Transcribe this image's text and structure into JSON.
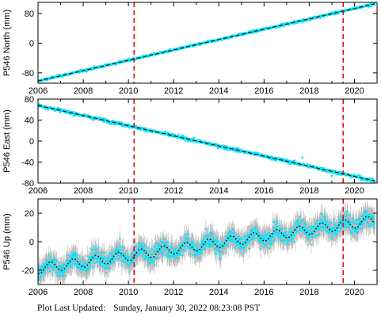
{
  "footer": {
    "label": "Plot Last Updated:",
    "timestamp": "Sunday, January 30, 2022 08:23:08 PST"
  },
  "colors": {
    "data": "#00e5ff",
    "error_bar": "#b8b8b8",
    "model": "#000000",
    "event": "#e01010",
    "frame": "#000000"
  },
  "chart_data": [
    {
      "type": "scatter",
      "ylabel": "P546 North (mm)",
      "xlim": [
        2006.0,
        2021.0
      ],
      "ylim": [
        -108,
        110
      ],
      "xticks": [
        2006,
        2008,
        2010,
        2012,
        2014,
        2016,
        2018,
        2020
      ],
      "yticks": [
        -80,
        0,
        80
      ],
      "grid": false,
      "series": [
        {
          "style": "cyan points with error bars",
          "trend_mm_per_yr": 14.0,
          "start": [
            2006.0,
            -102
          ],
          "end": [
            2020.9,
            106
          ]
        },
        {
          "style": "black dashed model",
          "x": [
            2006.0,
            2020.9
          ],
          "y": [
            -102,
            106
          ]
        }
      ],
      "event_lines_x": [
        2010.25,
        2019.5
      ]
    },
    {
      "type": "scatter",
      "ylabel": "P546 East (mm)",
      "xlim": [
        2006.0,
        2021.0
      ],
      "ylim": [
        -80,
        80
      ],
      "xticks": [
        2006,
        2008,
        2010,
        2012,
        2014,
        2016,
        2018,
        2020
      ],
      "yticks": [
        -80,
        -40,
        0,
        40,
        80
      ],
      "grid": false,
      "series": [
        {
          "style": "cyan points with error bars",
          "trend_mm_per_yr": -9.6,
          "start": [
            2006.0,
            68
          ],
          "end": [
            2020.9,
            -76
          ]
        },
        {
          "style": "black dashed model",
          "x": [
            2006.0,
            2020.9
          ],
          "y": [
            68,
            -76
          ]
        }
      ],
      "event_lines_x": [
        2010.25,
        2019.5
      ]
    },
    {
      "type": "scatter",
      "ylabel": "P546 Up (mm)",
      "xlim": [
        2006.0,
        2021.0
      ],
      "ylim": [
        -30,
        30
      ],
      "xticks": [
        2006,
        2008,
        2010,
        2012,
        2014,
        2016,
        2018,
        2020
      ],
      "yticks": [
        -20,
        0,
        20
      ],
      "grid": false,
      "series": [
        {
          "style": "cyan points with grey error bars",
          "trend_mm_per_yr": 2.2,
          "seasonal_amplitude_mm": 3.5,
          "start": [
            2006.0,
            -19
          ],
          "end": [
            2020.9,
            15
          ]
        },
        {
          "style": "black dotted seasonal model",
          "trend_mm_per_yr": 2.2,
          "seasonal_amplitude_mm": 3.5
        }
      ],
      "event_lines_x": [
        2010.25,
        2019.5
      ]
    }
  ]
}
